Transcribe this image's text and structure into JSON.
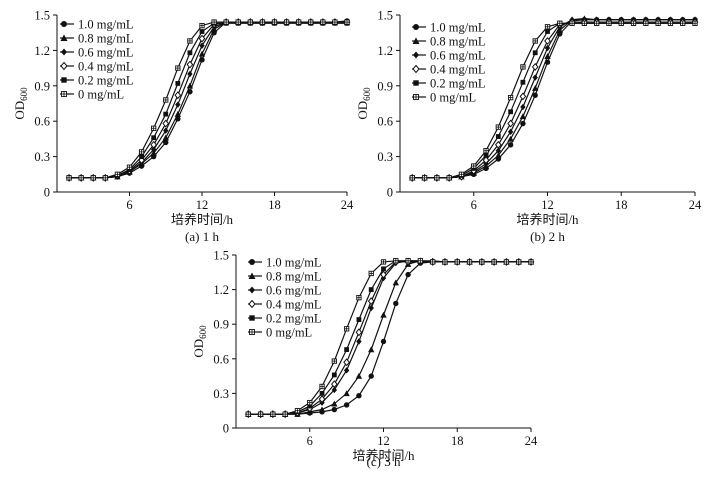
{
  "chart_data": [
    {
      "type": "line",
      "caption": "(a) 1 h",
      "xlabel": "培养时间/h",
      "ylabel": "OD",
      "ylabel_sub": "600",
      "xlim": [
        0,
        24
      ],
      "ylim": [
        0,
        1.5
      ],
      "xticks": [
        "6",
        "12",
        "18",
        "24"
      ],
      "yticks": [
        "0",
        "0.3",
        "0.6",
        "0.9",
        "1.2",
        "1.5"
      ],
      "legend_position": "top-left",
      "series": [
        {
          "name": "1.0 mg/mL",
          "marker": "filled-circle",
          "x": [
            1,
            2,
            3,
            4,
            5,
            6,
            7,
            8,
            9,
            10,
            11,
            12,
            13,
            14,
            15,
            16,
            17,
            18,
            19,
            20,
            21,
            22,
            23,
            24
          ],
          "y": [
            0.12,
            0.12,
            0.12,
            0.12,
            0.13,
            0.16,
            0.22,
            0.3,
            0.42,
            0.62,
            0.85,
            1.12,
            1.35,
            1.44,
            1.44,
            1.44,
            1.44,
            1.44,
            1.44,
            1.44,
            1.44,
            1.44,
            1.44,
            1.45
          ]
        },
        {
          "name": "0.8 mg/mL",
          "marker": "filled-triangle",
          "x": [
            1,
            2,
            3,
            4,
            5,
            6,
            7,
            8,
            9,
            10,
            11,
            12,
            13,
            14,
            15,
            16,
            17,
            18,
            19,
            20,
            21,
            22,
            23,
            24
          ],
          "y": [
            0.12,
            0.12,
            0.12,
            0.12,
            0.13,
            0.17,
            0.24,
            0.33,
            0.46,
            0.66,
            0.9,
            1.17,
            1.38,
            1.44,
            1.44,
            1.44,
            1.44,
            1.44,
            1.44,
            1.44,
            1.44,
            1.44,
            1.44,
            1.44
          ]
        },
        {
          "name": "0.6 mg/mL",
          "marker": "filled-diamond",
          "x": [
            1,
            2,
            3,
            4,
            5,
            6,
            7,
            8,
            9,
            10,
            11,
            12,
            13,
            14,
            15,
            16,
            17,
            18,
            19,
            20,
            21,
            22,
            23,
            24
          ],
          "y": [
            0.12,
            0.12,
            0.12,
            0.12,
            0.13,
            0.17,
            0.25,
            0.36,
            0.52,
            0.74,
            1.0,
            1.24,
            1.4,
            1.44,
            1.44,
            1.44,
            1.44,
            1.44,
            1.44,
            1.44,
            1.44,
            1.44,
            1.44,
            1.44
          ]
        },
        {
          "name": "0.4 mg/mL",
          "marker": "open-diamond",
          "x": [
            1,
            2,
            3,
            4,
            5,
            6,
            7,
            8,
            9,
            10,
            11,
            12,
            13,
            14,
            15,
            16,
            17,
            18,
            19,
            20,
            21,
            22,
            23,
            24
          ],
          "y": [
            0.12,
            0.12,
            0.12,
            0.12,
            0.14,
            0.18,
            0.27,
            0.4,
            0.58,
            0.82,
            1.08,
            1.3,
            1.42,
            1.44,
            1.44,
            1.44,
            1.44,
            1.44,
            1.44,
            1.44,
            1.44,
            1.44,
            1.44,
            1.44
          ]
        },
        {
          "name": "0.2 mg/mL",
          "marker": "filled-square",
          "x": [
            1,
            2,
            3,
            4,
            5,
            6,
            7,
            8,
            9,
            10,
            11,
            12,
            13,
            14,
            15,
            16,
            17,
            18,
            19,
            20,
            21,
            22,
            23,
            24
          ],
          "y": [
            0.12,
            0.12,
            0.12,
            0.12,
            0.14,
            0.19,
            0.3,
            0.46,
            0.66,
            0.92,
            1.18,
            1.36,
            1.43,
            1.43,
            1.43,
            1.43,
            1.43,
            1.43,
            1.43,
            1.43,
            1.43,
            1.43,
            1.43,
            1.43
          ]
        },
        {
          "name": "0 mg/mL",
          "marker": "open-square-cross",
          "x": [
            1,
            2,
            3,
            4,
            5,
            6,
            7,
            8,
            9,
            10,
            11,
            12,
            13,
            14,
            15,
            16,
            17,
            18,
            19,
            20,
            21,
            22,
            23,
            24
          ],
          "y": [
            0.12,
            0.12,
            0.12,
            0.12,
            0.15,
            0.21,
            0.34,
            0.54,
            0.78,
            1.05,
            1.28,
            1.41,
            1.44,
            1.44,
            1.44,
            1.44,
            1.44,
            1.44,
            1.44,
            1.44,
            1.44,
            1.44,
            1.44,
            1.44
          ]
        }
      ]
    },
    {
      "type": "line",
      "caption": "(b) 2 h",
      "xlabel": "培养时间/h",
      "ylabel": "OD",
      "ylabel_sub": "600",
      "xlim": [
        0,
        24
      ],
      "ylim": [
        0,
        1.5
      ],
      "xticks": [
        "6",
        "12",
        "18",
        "24"
      ],
      "yticks": [
        "0",
        "0.3",
        "0.6",
        "0.9",
        "1.2",
        "1.5"
      ],
      "legend_position": "top-left",
      "series": [
        {
          "name": "1.0 mg/mL",
          "marker": "filled-circle",
          "x": [
            1,
            2,
            3,
            4,
            5,
            6,
            7,
            8,
            9,
            10,
            11,
            12,
            13,
            14,
            15,
            16,
            17,
            18,
            19,
            20,
            21,
            22,
            23,
            24
          ],
          "y": [
            0.12,
            0.12,
            0.12,
            0.12,
            0.13,
            0.15,
            0.2,
            0.28,
            0.4,
            0.58,
            0.82,
            1.1,
            1.34,
            1.45,
            1.46,
            1.46,
            1.46,
            1.46,
            1.46,
            1.46,
            1.46,
            1.46,
            1.46,
            1.46
          ]
        },
        {
          "name": "0.8 mg/mL",
          "marker": "filled-triangle",
          "x": [
            1,
            2,
            3,
            4,
            5,
            6,
            7,
            8,
            9,
            10,
            11,
            12,
            13,
            14,
            15,
            16,
            17,
            18,
            19,
            20,
            21,
            22,
            23,
            24
          ],
          "y": [
            0.12,
            0.12,
            0.12,
            0.12,
            0.13,
            0.16,
            0.22,
            0.31,
            0.45,
            0.64,
            0.88,
            1.15,
            1.37,
            1.46,
            1.47,
            1.46,
            1.46,
            1.46,
            1.46,
            1.46,
            1.46,
            1.46,
            1.46,
            1.46
          ]
        },
        {
          "name": "0.6 mg/mL",
          "marker": "filled-diamond",
          "x": [
            1,
            2,
            3,
            4,
            5,
            6,
            7,
            8,
            9,
            10,
            11,
            12,
            13,
            14,
            15,
            16,
            17,
            18,
            19,
            20,
            21,
            22,
            23,
            24
          ],
          "y": [
            0.12,
            0.12,
            0.12,
            0.12,
            0.13,
            0.17,
            0.24,
            0.35,
            0.51,
            0.72,
            0.97,
            1.22,
            1.4,
            1.46,
            1.46,
            1.46,
            1.46,
            1.46,
            1.46,
            1.46,
            1.46,
            1.46,
            1.46,
            1.46
          ]
        },
        {
          "name": "0.4 mg/mL",
          "marker": "open-diamond",
          "x": [
            1,
            2,
            3,
            4,
            5,
            6,
            7,
            8,
            9,
            10,
            11,
            12,
            13,
            14,
            15,
            16,
            17,
            18,
            19,
            20,
            21,
            22,
            23,
            24
          ],
          "y": [
            0.12,
            0.12,
            0.12,
            0.12,
            0.13,
            0.18,
            0.27,
            0.4,
            0.58,
            0.81,
            1.06,
            1.28,
            1.42,
            1.44,
            1.44,
            1.44,
            1.44,
            1.44,
            1.44,
            1.44,
            1.44,
            1.44,
            1.44,
            1.44
          ]
        },
        {
          "name": "0.2 mg/mL",
          "marker": "filled-square",
          "x": [
            1,
            2,
            3,
            4,
            5,
            6,
            7,
            8,
            9,
            10,
            11,
            12,
            13,
            14,
            15,
            16,
            17,
            18,
            19,
            20,
            21,
            22,
            23,
            24
          ],
          "y": [
            0.12,
            0.12,
            0.12,
            0.12,
            0.14,
            0.2,
            0.31,
            0.47,
            0.68,
            0.93,
            1.18,
            1.36,
            1.43,
            1.43,
            1.43,
            1.43,
            1.43,
            1.43,
            1.43,
            1.43,
            1.43,
            1.43,
            1.43,
            1.43
          ]
        },
        {
          "name": "0 mg/mL",
          "marker": "open-square-cross",
          "x": [
            1,
            2,
            3,
            4,
            5,
            6,
            7,
            8,
            9,
            10,
            11,
            12,
            13,
            14,
            15,
            16,
            17,
            18,
            19,
            20,
            21,
            22,
            23,
            24
          ],
          "y": [
            0.12,
            0.12,
            0.12,
            0.12,
            0.15,
            0.22,
            0.35,
            0.55,
            0.8,
            1.06,
            1.28,
            1.4,
            1.43,
            1.43,
            1.43,
            1.43,
            1.43,
            1.43,
            1.43,
            1.43,
            1.43,
            1.43,
            1.43,
            1.43
          ]
        }
      ]
    },
    {
      "type": "line",
      "caption": "(c) 3 h",
      "xlabel": "培养时间/h",
      "ylabel": "OD",
      "ylabel_sub": "600",
      "xlim": [
        0,
        24
      ],
      "ylim": [
        0,
        1.5
      ],
      "xticks": [
        "6",
        "12",
        "18",
        "24"
      ],
      "yticks": [
        "0",
        "0.3",
        "0.6",
        "0.9",
        "1.2",
        "1.5"
      ],
      "legend_position": "top-left",
      "series": [
        {
          "name": "1.0 mg/mL",
          "marker": "filled-circle",
          "x": [
            1,
            2,
            3,
            4,
            5,
            6,
            7,
            8,
            9,
            10,
            11,
            12,
            13,
            14,
            15,
            16,
            17,
            18,
            19,
            20,
            21,
            22,
            23,
            24
          ],
          "y": [
            0.12,
            0.12,
            0.12,
            0.12,
            0.12,
            0.13,
            0.14,
            0.16,
            0.2,
            0.28,
            0.45,
            0.75,
            1.08,
            1.33,
            1.43,
            1.44,
            1.44,
            1.44,
            1.44,
            1.44,
            1.44,
            1.44,
            1.44,
            1.44
          ]
        },
        {
          "name": "0.8 mg/mL",
          "marker": "filled-triangle",
          "x": [
            1,
            2,
            3,
            4,
            5,
            6,
            7,
            8,
            9,
            10,
            11,
            12,
            13,
            14,
            15,
            16,
            17,
            18,
            19,
            20,
            21,
            22,
            23,
            24
          ],
          "y": [
            0.12,
            0.12,
            0.12,
            0.12,
            0.12,
            0.14,
            0.16,
            0.21,
            0.3,
            0.45,
            0.68,
            0.98,
            1.26,
            1.42,
            1.45,
            1.45,
            1.44,
            1.44,
            1.44,
            1.44,
            1.44,
            1.44,
            1.44,
            1.44
          ]
        },
        {
          "name": "0.6 mg/mL",
          "marker": "filled-diamond",
          "x": [
            1,
            2,
            3,
            4,
            5,
            6,
            7,
            8,
            9,
            10,
            11,
            12,
            13,
            14,
            15,
            16,
            17,
            18,
            19,
            20,
            21,
            22,
            23,
            24
          ],
          "y": [
            0.12,
            0.12,
            0.12,
            0.12,
            0.13,
            0.16,
            0.22,
            0.33,
            0.5,
            0.75,
            1.04,
            1.3,
            1.43,
            1.45,
            1.45,
            1.44,
            1.44,
            1.44,
            1.44,
            1.44,
            1.44,
            1.44,
            1.44,
            1.44
          ]
        },
        {
          "name": "0.4 mg/mL",
          "marker": "open-diamond",
          "x": [
            1,
            2,
            3,
            4,
            5,
            6,
            7,
            8,
            9,
            10,
            11,
            12,
            13,
            14,
            15,
            16,
            17,
            18,
            19,
            20,
            21,
            22,
            23,
            24
          ],
          "y": [
            0.12,
            0.12,
            0.12,
            0.12,
            0.13,
            0.17,
            0.25,
            0.38,
            0.57,
            0.83,
            1.1,
            1.33,
            1.44,
            1.44,
            1.44,
            1.44,
            1.44,
            1.44,
            1.44,
            1.44,
            1.44,
            1.44,
            1.44,
            1.44
          ]
        },
        {
          "name": "0.2 mg/mL",
          "marker": "filled-square",
          "x": [
            1,
            2,
            3,
            4,
            5,
            6,
            7,
            8,
            9,
            10,
            11,
            12,
            13,
            14,
            15,
            16,
            17,
            18,
            19,
            20,
            21,
            22,
            23,
            24
          ],
          "y": [
            0.12,
            0.12,
            0.12,
            0.12,
            0.14,
            0.19,
            0.3,
            0.46,
            0.68,
            0.94,
            1.2,
            1.38,
            1.45,
            1.45,
            1.44,
            1.44,
            1.44,
            1.44,
            1.44,
            1.44,
            1.44,
            1.44,
            1.44,
            1.44
          ]
        },
        {
          "name": "0 mg/mL",
          "marker": "open-square-cross",
          "x": [
            1,
            2,
            3,
            4,
            5,
            6,
            7,
            8,
            9,
            10,
            11,
            12,
            13,
            14,
            15,
            16,
            17,
            18,
            19,
            20,
            21,
            22,
            23,
            24
          ],
          "y": [
            0.12,
            0.12,
            0.12,
            0.12,
            0.15,
            0.22,
            0.36,
            0.58,
            0.86,
            1.13,
            1.34,
            1.44,
            1.45,
            1.45,
            1.45,
            1.44,
            1.44,
            1.44,
            1.44,
            1.44,
            1.44,
            1.44,
            1.44,
            1.44
          ]
        }
      ]
    }
  ]
}
